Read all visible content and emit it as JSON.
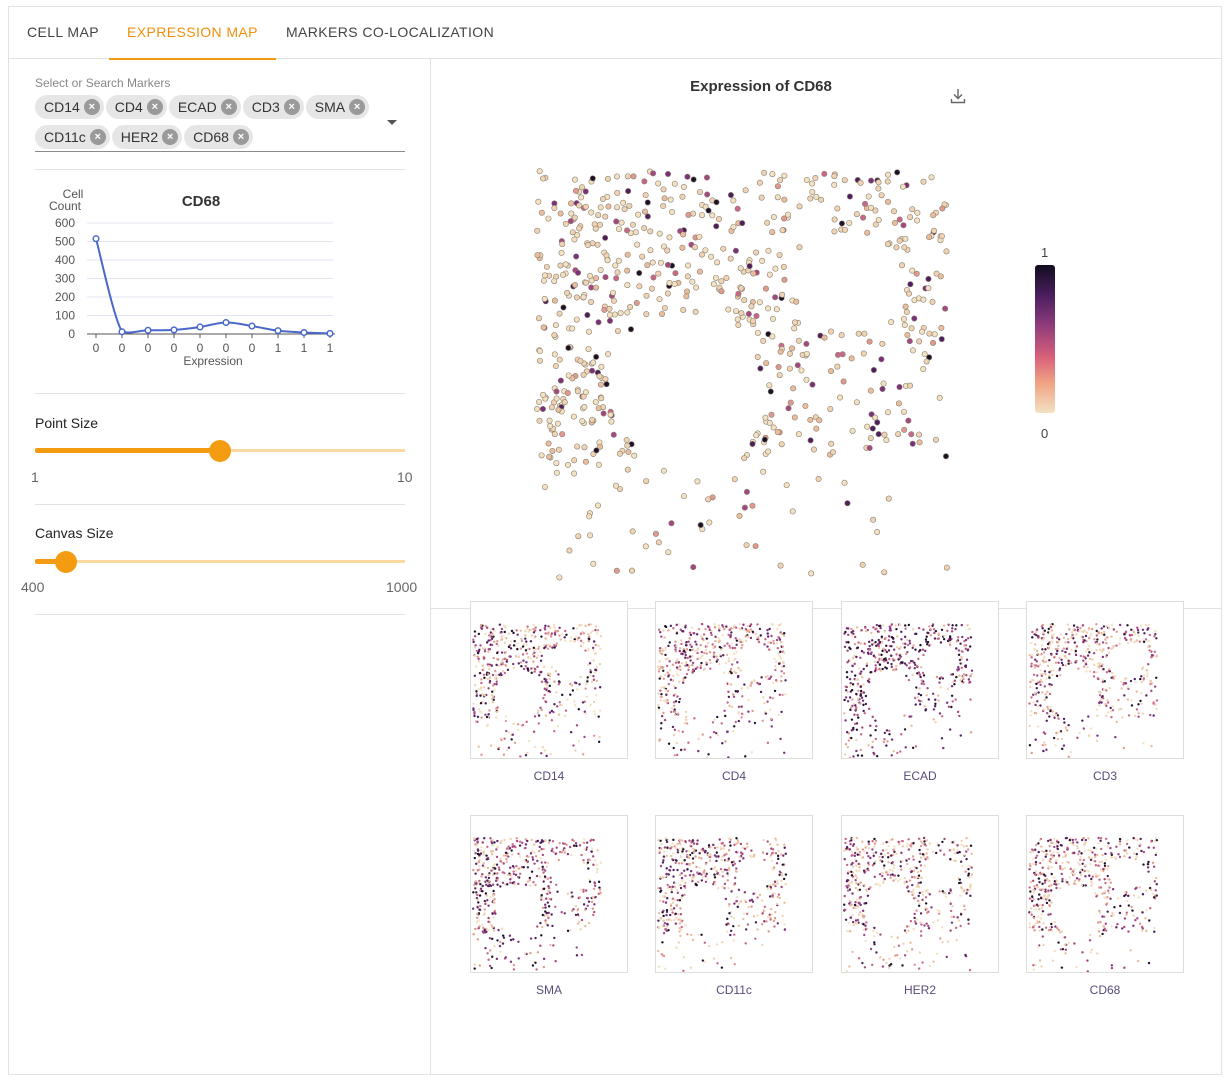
{
  "tabs": [
    "CELL MAP",
    "EXPRESSION MAP",
    "MARKERS CO-LOCALIZATION"
  ],
  "active_tab": "EXPRESSION MAP",
  "marker_select": {
    "label": "Select or Search Markers",
    "selected": [
      "CD14",
      "CD4",
      "ECAD",
      "CD3",
      "SMA",
      "CD11c",
      "HER2",
      "CD68"
    ]
  },
  "histogram": {
    "title": "CD68",
    "ylabel_line1": "Cell",
    "ylabel_line2": "Count",
    "xlabel": "Expression",
    "y_ticks": [
      "600",
      "500",
      "400",
      "300",
      "200",
      "100",
      "0"
    ],
    "x_ticks": [
      "0",
      "0",
      "0",
      "0",
      "0",
      "0",
      "0",
      "1",
      "1",
      "1"
    ],
    "line_color": "#4a68c9"
  },
  "point_size": {
    "label": "Point Size",
    "min": "1",
    "max": "10",
    "value": 5.5
  },
  "canvas_size": {
    "label": "Canvas Size",
    "min": "400",
    "max": "1000",
    "value": 450
  },
  "main_map": {
    "title": "Expression of CD68",
    "legend_max": "1",
    "legend_min": "0",
    "download_icon": "download-icon"
  },
  "thumbnails": [
    "CD14",
    "CD4",
    "ECAD",
    "CD3",
    "SMA",
    "CD11c",
    "HER2",
    "CD68"
  ],
  "colors": {
    "accent": "#f39c12",
    "tab_active": "#f0900a",
    "thumb_label": "#5a4a7a"
  },
  "chart_data": {
    "type": "line",
    "title": "CD68",
    "xlabel": "Expression",
    "ylabel": "Cell Count",
    "ylim": [
      0,
      600
    ],
    "x": [
      0,
      1,
      2,
      3,
      4,
      5,
      6,
      7,
      8,
      9
    ],
    "x_tick_labels": [
      "0",
      "0",
      "0",
      "0",
      "0",
      "0",
      "0",
      "1",
      "1",
      "1"
    ],
    "series": [
      {
        "values": [
          515,
          12,
          20,
          22,
          38,
          62,
          43,
          18,
          8,
          3
        ]
      }
    ],
    "grid": true
  }
}
